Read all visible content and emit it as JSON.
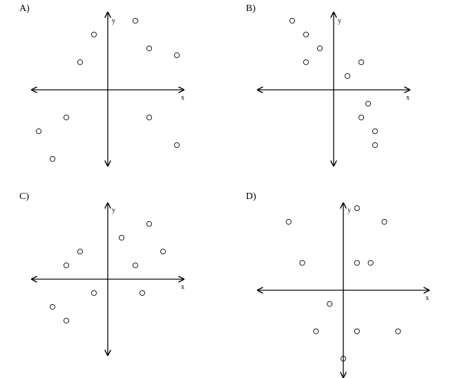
{
  "chart_data": [
    {
      "type": "scatter",
      "panel_label": "A)",
      "xlabel": "x",
      "ylabel": "y",
      "xlim": [
        -5.5,
        5.5
      ],
      "ylim": [
        -5.5,
        5.5
      ],
      "grid": false,
      "points": [
        [
          2,
          5
        ],
        [
          -1,
          4
        ],
        [
          3,
          3
        ],
        [
          5,
          2.5
        ],
        [
          -2,
          2
        ],
        [
          -3,
          -2
        ],
        [
          3,
          -2
        ],
        [
          -5,
          -3
        ],
        [
          5,
          -4
        ],
        [
          -4,
          -5
        ]
      ]
    },
    {
      "type": "scatter",
      "panel_label": "B)",
      "xlabel": "x",
      "ylabel": "y",
      "xlim": [
        -5.5,
        5.5
      ],
      "ylim": [
        -5.5,
        5.5
      ],
      "grid": false,
      "points": [
        [
          -3,
          5
        ],
        [
          -2,
          4
        ],
        [
          -1,
          3
        ],
        [
          -2,
          2
        ],
        [
          2,
          2
        ],
        [
          1,
          1
        ],
        [
          2.5,
          -1
        ],
        [
          2,
          -2
        ],
        [
          3,
          -3
        ],
        [
          3,
          -4
        ]
      ]
    },
    {
      "type": "scatter",
      "panel_label": "C)",
      "xlabel": "x",
      "ylabel": "y",
      "xlim": [
        -5.5,
        5.5
      ],
      "ylim": [
        -5.5,
        5.5
      ],
      "grid": false,
      "points": [
        [
          3,
          4
        ],
        [
          1,
          3
        ],
        [
          -2,
          2
        ],
        [
          4,
          2
        ],
        [
          -3,
          1
        ],
        [
          2,
          1
        ],
        [
          -1,
          -1
        ],
        [
          2.5,
          -1
        ],
        [
          -4,
          -2
        ],
        [
          -3,
          -3
        ]
      ]
    },
    {
      "type": "scatter",
      "panel_label": "D)",
      "xlabel": "x",
      "ylabel": "y",
      "xlim": [
        -6.2,
        6.2
      ],
      "ylim": [
        -6.2,
        6.2
      ],
      "grid": false,
      "points": [
        [
          1,
          6
        ],
        [
          -4,
          5
        ],
        [
          3,
          5
        ],
        [
          -3,
          2
        ],
        [
          1,
          2
        ],
        [
          2,
          2
        ],
        [
          -1,
          -1
        ],
        [
          -2,
          -3
        ],
        [
          1,
          -3
        ],
        [
          4,
          -3
        ],
        [
          0,
          -5
        ]
      ]
    }
  ]
}
